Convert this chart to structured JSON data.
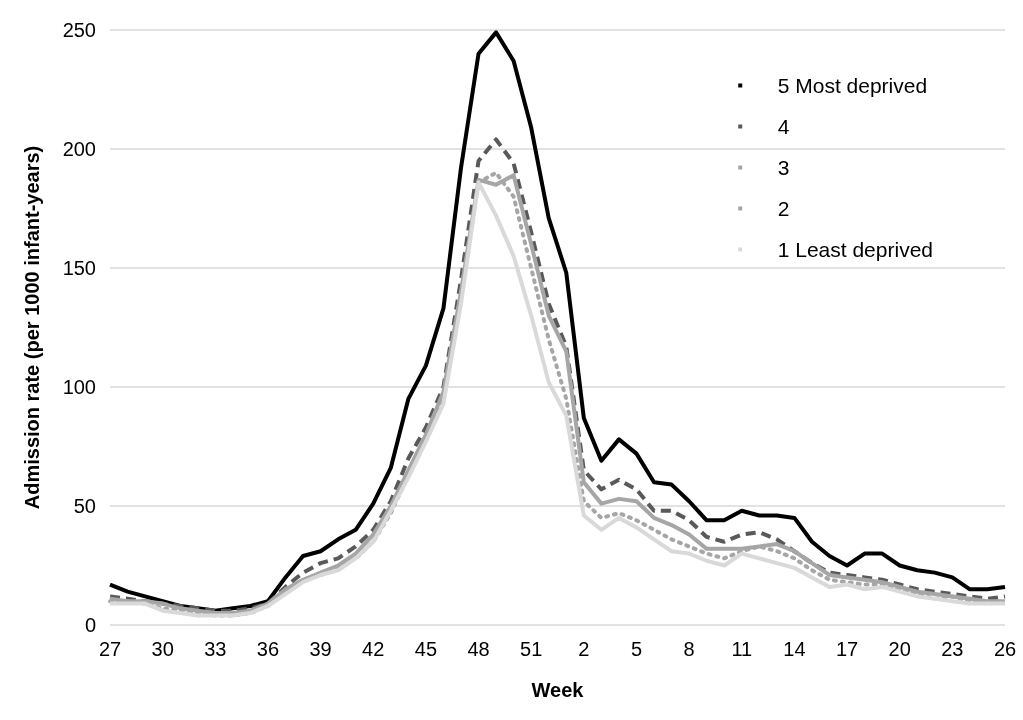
{
  "chart_data": {
    "type": "line",
    "xlabel": "Week",
    "ylabel": "Admission rate (per 1000 infant-years)",
    "categories": [
      "27",
      null,
      null,
      "30",
      null,
      null,
      "33",
      null,
      null,
      "36",
      null,
      null,
      "39",
      null,
      null,
      "42",
      null,
      null,
      "45",
      null,
      null,
      "48",
      null,
      null,
      "51",
      null,
      null,
      "2",
      null,
      null,
      "5",
      null,
      null,
      "8",
      null,
      null,
      "11",
      null,
      null,
      "14",
      null,
      null,
      "17",
      null,
      null,
      "20",
      null,
      null,
      "23",
      null,
      null,
      "26"
    ],
    "ylim": [
      0,
      250
    ],
    "yticks": [
      0,
      50,
      100,
      150,
      200,
      250
    ],
    "grid": "y",
    "legend": "top right",
    "marker": "none",
    "series": [
      {
        "name": "5 Most deprived",
        "color": "#000000",
        "line_style": "solid",
        "values": [
          17,
          14,
          12,
          10,
          8,
          7,
          6,
          7,
          8,
          10,
          20,
          29,
          31,
          36,
          40,
          51,
          66,
          95,
          109,
          133,
          192,
          240,
          249,
          237,
          209,
          171,
          148,
          87,
          69,
          78,
          72,
          60,
          59,
          52,
          44,
          44,
          48,
          46,
          46,
          45,
          35,
          29,
          25,
          30,
          30,
          25,
          23,
          22,
          20,
          15,
          15,
          16
        ]
      },
      {
        "name": "4",
        "color": "#595959",
        "line_style": "dashed",
        "values": [
          12,
          11,
          10,
          9,
          8,
          7,
          6,
          6,
          7,
          9,
          16,
          22,
          26,
          28,
          33,
          40,
          52,
          70,
          83,
          100,
          145,
          195,
          204,
          194,
          165,
          135,
          117,
          65,
          57,
          61,
          57,
          48,
          48,
          44,
          37,
          35,
          38,
          39,
          36,
          31,
          26,
          22,
          21,
          20,
          19,
          17,
          15,
          14,
          13,
          12,
          11,
          12
        ]
      },
      {
        "name": "3",
        "color": "#a6a6a6",
        "line_style": "solid",
        "values": [
          11,
          10,
          10,
          9,
          7,
          6,
          5,
          5,
          6,
          9,
          15,
          19,
          22,
          25,
          30,
          38,
          50,
          65,
          80,
          98,
          140,
          187,
          185,
          189,
          160,
          130,
          115,
          60,
          51,
          53,
          52,
          45,
          42,
          38,
          32,
          32,
          32,
          33,
          34,
          31,
          26,
          21,
          20,
          19,
          18,
          16,
          14,
          13,
          12,
          11,
          10,
          10
        ]
      },
      {
        "name": "2",
        "color": "#a6a6a6",
        "line_style": "dotted",
        "values": [
          10,
          10,
          9,
          7,
          6,
          5,
          4,
          4,
          5,
          8,
          14,
          19,
          21,
          24,
          28,
          35,
          47,
          63,
          78,
          97,
          140,
          186,
          190,
          180,
          150,
          120,
          95,
          52,
          45,
          47,
          44,
          40,
          36,
          33,
          30,
          28,
          31,
          33,
          31,
          28,
          23,
          19,
          18,
          17,
          17,
          15,
          13,
          11,
          12,
          10,
          9,
          10
        ]
      },
      {
        "name": "1 Least deprived",
        "color": "#d9d9d9",
        "line_style": "solid",
        "values": [
          9,
          9,
          9,
          6,
          5,
          4,
          4,
          4,
          5,
          8,
          13,
          18,
          21,
          23,
          28,
          35,
          48,
          62,
          77,
          93,
          135,
          186,
          172,
          155,
          130,
          102,
          88,
          46,
          40,
          45,
          41,
          36,
          31,
          30,
          27,
          25,
          30,
          28,
          26,
          24,
          20,
          16,
          17,
          15,
          16,
          14,
          12,
          11,
          10,
          9,
          9,
          9
        ]
      }
    ]
  }
}
